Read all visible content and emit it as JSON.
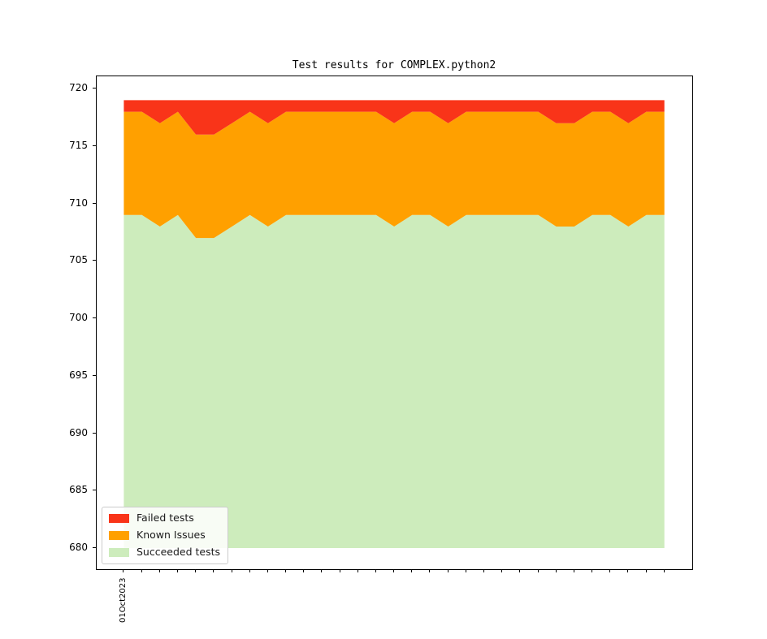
{
  "chart": {
    "title": "Test results for COMPLEX.python2"
  },
  "chart_data": {
    "type": "area",
    "stacked": true,
    "title": "Test results for COMPLEX.python2",
    "xlabel": "",
    "ylabel": "",
    "n_points": 31,
    "x_first_tick_label": "01Oct2023",
    "x_note": "31 daily ticks; only the first tick is labeled, label rotated 90deg reading bottom-to-top",
    "baseline": 680,
    "total_per_point": 719,
    "yticks": [
      680,
      685,
      690,
      695,
      700,
      705,
      710,
      715,
      720
    ],
    "ylim": [
      678.16,
      721.08
    ],
    "grid": false,
    "legend_position": "lower left",
    "series": [
      {
        "name": "Failed tests",
        "color": "#f93419",
        "values": [
          1,
          1,
          2,
          1,
          3,
          3,
          2,
          1,
          2,
          1,
          1,
          1,
          1,
          1,
          1,
          2,
          1,
          1,
          2,
          1,
          1,
          1,
          1,
          1,
          2,
          2,
          1,
          1,
          2,
          1,
          1
        ]
      },
      {
        "name": "Known Issues",
        "color": "#ffa000",
        "values": [
          9,
          9,
          9,
          9,
          9,
          9,
          9,
          9,
          9,
          9,
          9,
          9,
          9,
          9,
          9,
          9,
          9,
          9,
          9,
          9,
          9,
          9,
          9,
          9,
          9,
          9,
          9,
          9,
          9,
          9,
          9
        ]
      },
      {
        "name": "Succeeded tests",
        "color": "#cdecbc",
        "values": [
          709,
          709,
          708,
          709,
          707,
          707,
          708,
          709,
          708,
          709,
          709,
          709,
          709,
          709,
          709,
          708,
          709,
          709,
          708,
          709,
          709,
          709,
          709,
          709,
          708,
          708,
          709,
          709,
          708,
          709,
          709
        ]
      }
    ],
    "stacking_order_bottom_to_top": [
      "Succeeded tests",
      "Known Issues",
      "Failed tests"
    ]
  },
  "legend": {
    "items": [
      {
        "label": "Failed tests",
        "color": "#f93419"
      },
      {
        "label": "Known Issues",
        "color": "#ffa000"
      },
      {
        "label": "Succeeded tests",
        "color": "#cdecbc"
      }
    ]
  }
}
